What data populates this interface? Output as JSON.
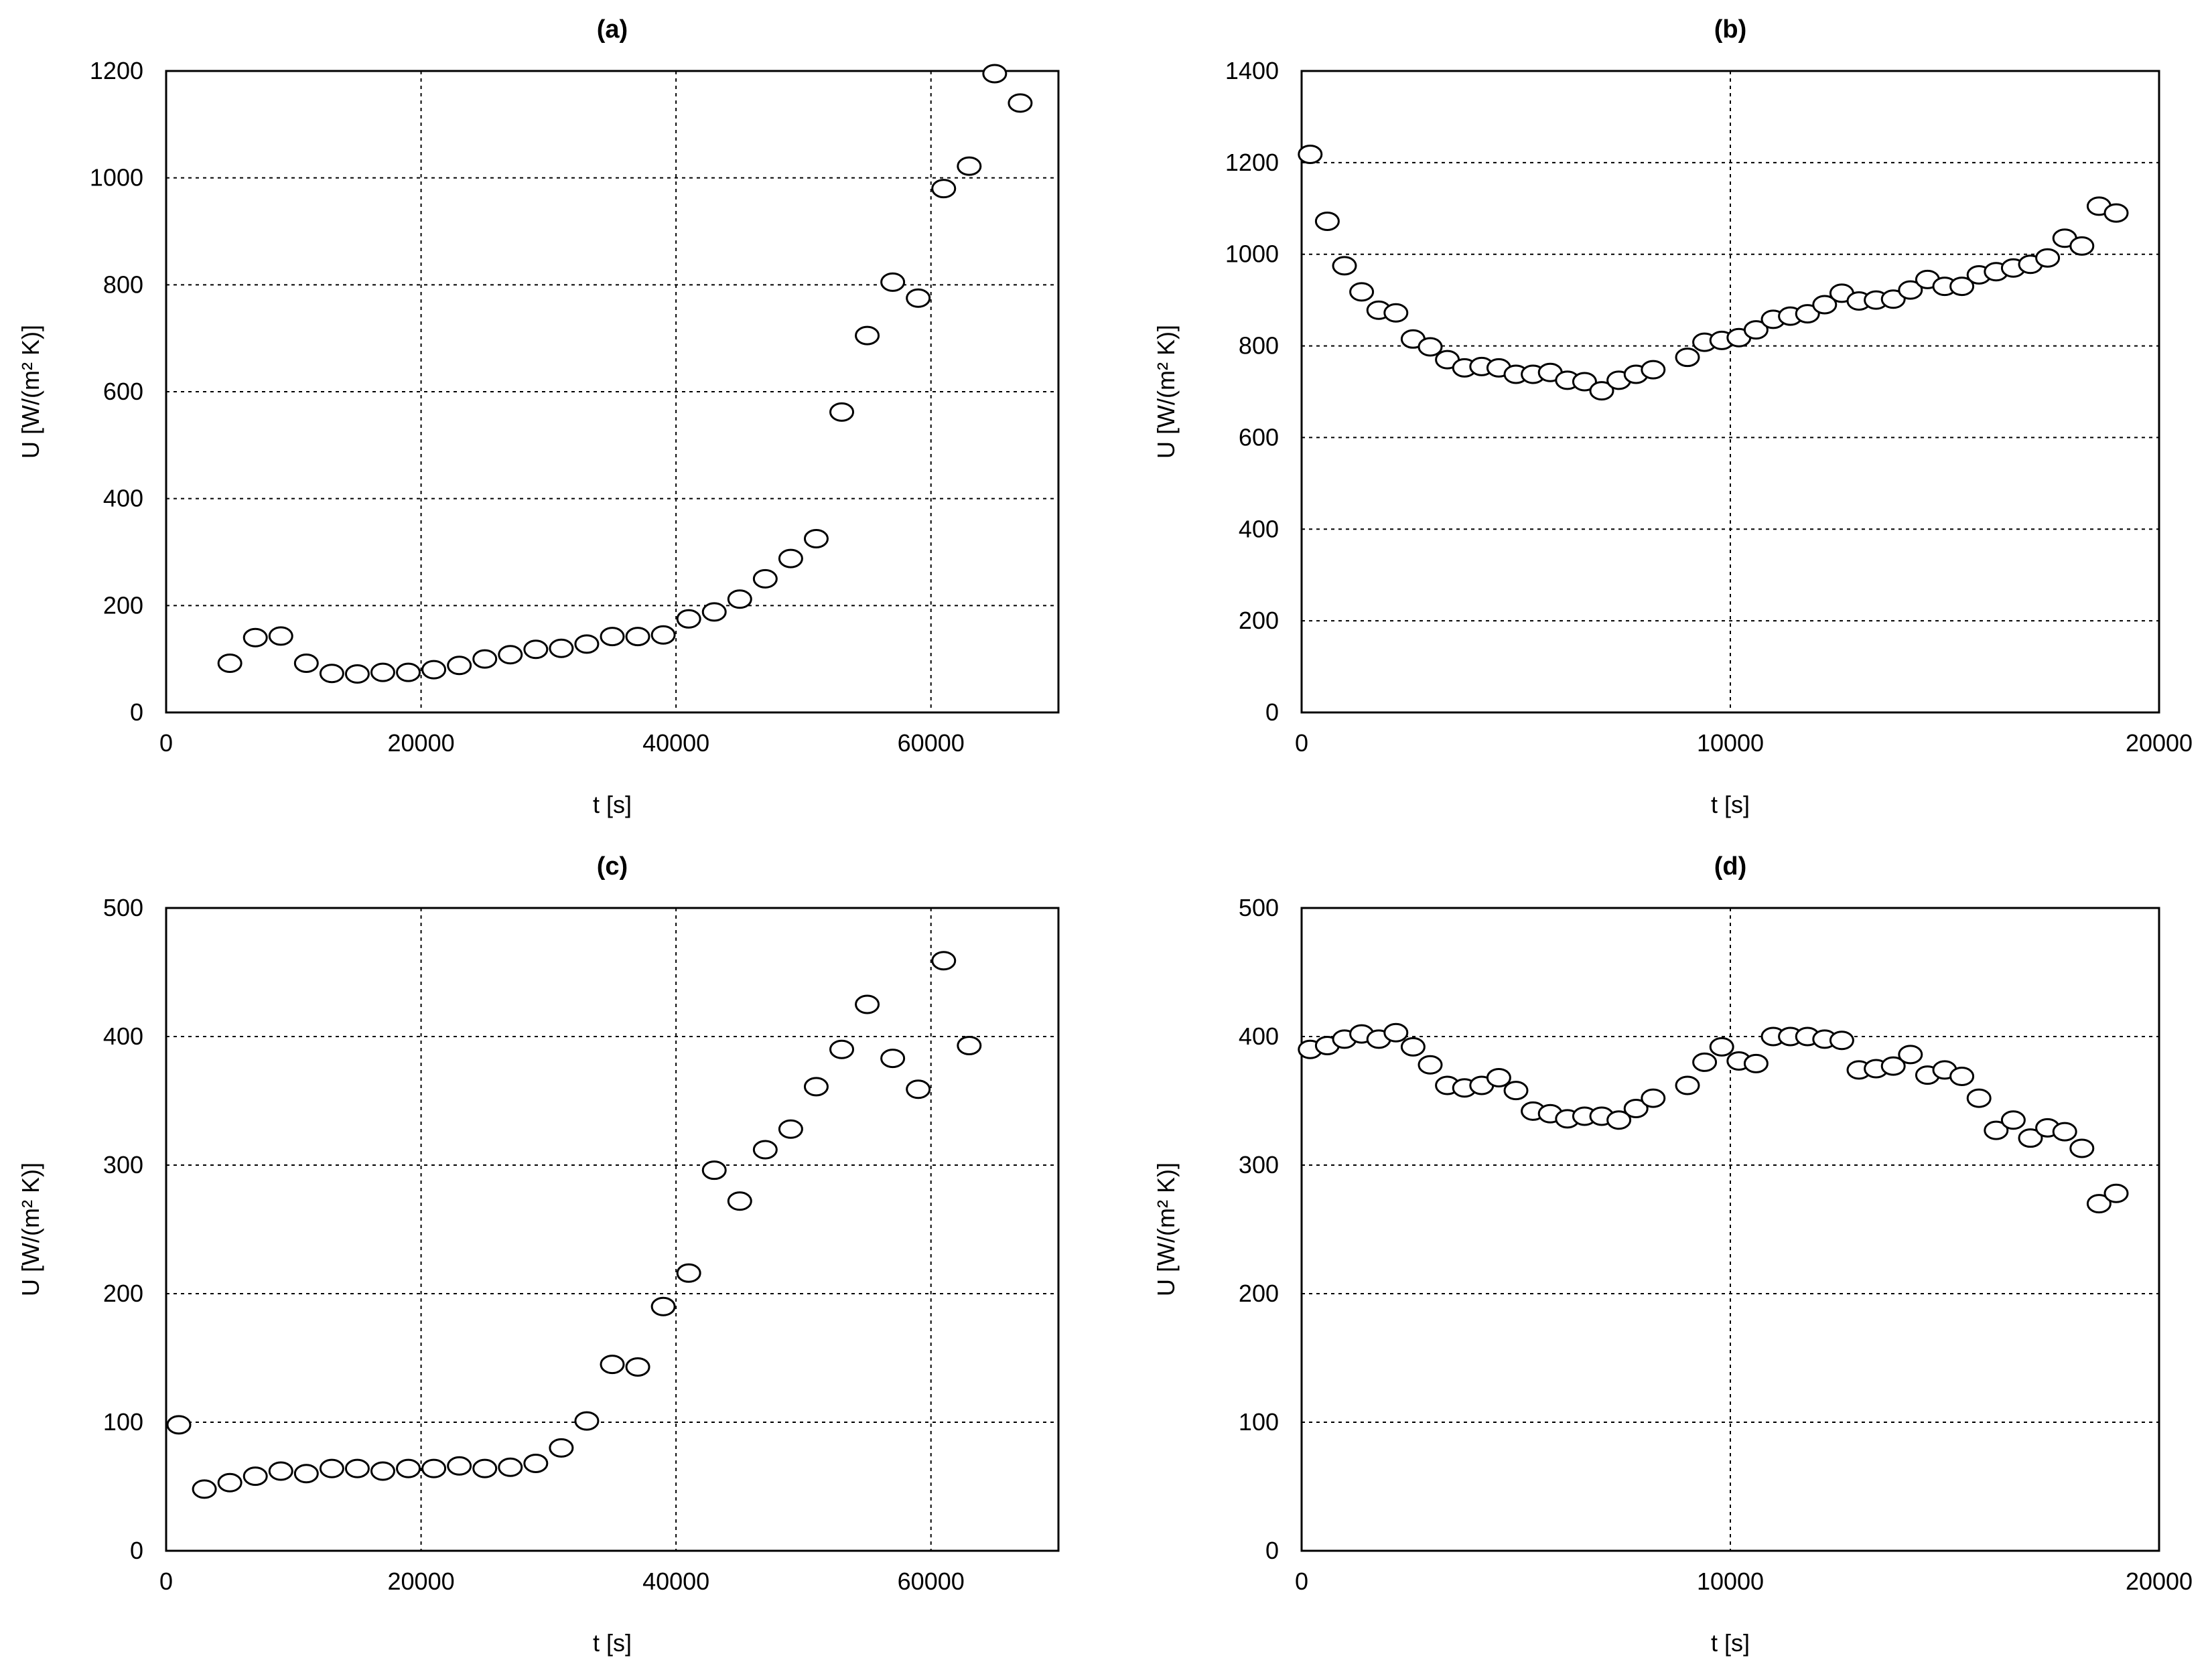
{
  "chart_data": [
    {
      "id": "a",
      "type": "scatter",
      "title": "(a)",
      "xlabel": "t [s]",
      "ylabel": "U [W/(m² K)]",
      "xlim": [
        0,
        70000
      ],
      "ylim": [
        0,
        1200
      ],
      "xticks": [
        0,
        20000,
        40000,
        60000
      ],
      "yticks": [
        0,
        200,
        400,
        600,
        800,
        1000,
        1200
      ],
      "grid": true,
      "marker": "open-circle",
      "x": [
        5000,
        7000,
        9000,
        11000,
        13000,
        15000,
        17000,
        19000,
        21000,
        23000,
        25000,
        27000,
        29000,
        31000,
        33000,
        35000,
        37000,
        39000,
        41000,
        43000,
        45000,
        47000,
        49000,
        51000,
        53000,
        55000,
        57000,
        59000,
        61000,
        63000,
        65000,
        67000
      ],
      "y": [
        92,
        140,
        143,
        92,
        73,
        72,
        75,
        75,
        80,
        88,
        100,
        108,
        118,
        120,
        128,
        142,
        142,
        145,
        175,
        188,
        212,
        250,
        288,
        325,
        562,
        705,
        805,
        775,
        980,
        1022,
        1195,
        1140
      ]
    },
    {
      "id": "b",
      "type": "scatter",
      "title": "(b)",
      "xlabel": "t [s]",
      "ylabel": "U [W/(m² K)]",
      "xlim": [
        0,
        20000
      ],
      "ylim": [
        0,
        1400
      ],
      "xticks": [
        0,
        10000,
        20000
      ],
      "yticks": [
        0,
        200,
        400,
        600,
        800,
        1000,
        1200,
        1400
      ],
      "grid": true,
      "marker": "open-circle",
      "x": [
        200,
        600,
        1000,
        1400,
        1800,
        2200,
        2600,
        3000,
        3400,
        3800,
        4200,
        4600,
        5000,
        5400,
        5800,
        6200,
        6600,
        7000,
        7400,
        7800,
        8200,
        9000,
        9400,
        9800,
        10200,
        10600,
        11000,
        11400,
        11800,
        12200,
        12600,
        13000,
        13400,
        13800,
        14200,
        14600,
        15000,
        15400,
        15800,
        16200,
        16600,
        17000,
        17400,
        17800,
        18200,
        18600,
        19000
      ],
      "y": [
        1218,
        1072,
        975,
        918,
        878,
        872,
        815,
        798,
        770,
        752,
        755,
        752,
        738,
        738,
        742,
        725,
        722,
        702,
        725,
        738,
        748,
        775,
        808,
        812,
        818,
        835,
        858,
        865,
        870,
        890,
        915,
        898,
        900,
        902,
        922,
        945,
        930,
        930,
        955,
        962,
        970,
        978,
        992,
        1035,
        1018,
        1105,
        1090
      ]
    },
    {
      "id": "c",
      "type": "scatter",
      "title": "(c)",
      "xlabel": "t [s]",
      "ylabel": "U [W/(m² K)]",
      "xlim": [
        0,
        70000
      ],
      "ylim": [
        0,
        500
      ],
      "xticks": [
        0,
        20000,
        40000,
        60000
      ],
      "yticks": [
        0,
        100,
        200,
        300,
        400,
        500
      ],
      "grid": true,
      "marker": "open-circle",
      "x": [
        1000,
        3000,
        5000,
        7000,
        9000,
        11000,
        13000,
        15000,
        17000,
        19000,
        21000,
        23000,
        25000,
        27000,
        29000,
        31000,
        33000,
        35000,
        37000,
        39000,
        41000,
        43000,
        45000,
        47000,
        49000,
        51000,
        53000,
        55000,
        57000,
        59000,
        61000,
        63000
      ],
      "y": [
        98,
        48,
        53,
        58,
        62,
        60,
        64,
        64,
        62,
        64,
        64,
        66,
        64,
        65,
        68,
        80,
        101,
        145,
        143,
        190,
        216,
        296,
        272,
        312,
        328,
        361,
        390,
        425,
        383,
        359,
        459,
        393
      ]
    },
    {
      "id": "d",
      "type": "scatter",
      "title": "(d)",
      "xlabel": "t [s]",
      "ylabel": "U [W/(m² K)]",
      "xlim": [
        0,
        20000
      ],
      "ylim": [
        0,
        500
      ],
      "xticks": [
        0,
        10000,
        20000
      ],
      "yticks": [
        0,
        100,
        200,
        300,
        400,
        500
      ],
      "grid": true,
      "marker": "open-circle",
      "x": [
        200,
        600,
        1000,
        1400,
        1800,
        2200,
        2600,
        3000,
        3400,
        3800,
        4200,
        4600,
        5000,
        5400,
        5800,
        6200,
        6600,
        7000,
        7400,
        7800,
        8200,
        9000,
        9400,
        9800,
        10200,
        10600,
        11000,
        11400,
        11800,
        12200,
        12600,
        13000,
        13400,
        13800,
        14200,
        14600,
        15000,
        15400,
        15800,
        16200,
        16600,
        17000,
        17400,
        17800,
        18200,
        18600,
        19000
      ],
      "y": [
        390,
        393,
        398,
        402,
        398,
        403,
        392,
        378,
        362,
        360,
        362,
        368,
        358,
        342,
        340,
        336,
        338,
        338,
        335,
        344,
        352,
        362,
        380,
        392,
        381,
        379,
        400,
        400,
        400,
        398,
        397,
        374,
        375,
        377,
        386,
        370,
        374,
        369,
        352,
        327,
        335,
        321,
        329,
        326,
        313,
        270,
        278
      ]
    }
  ]
}
